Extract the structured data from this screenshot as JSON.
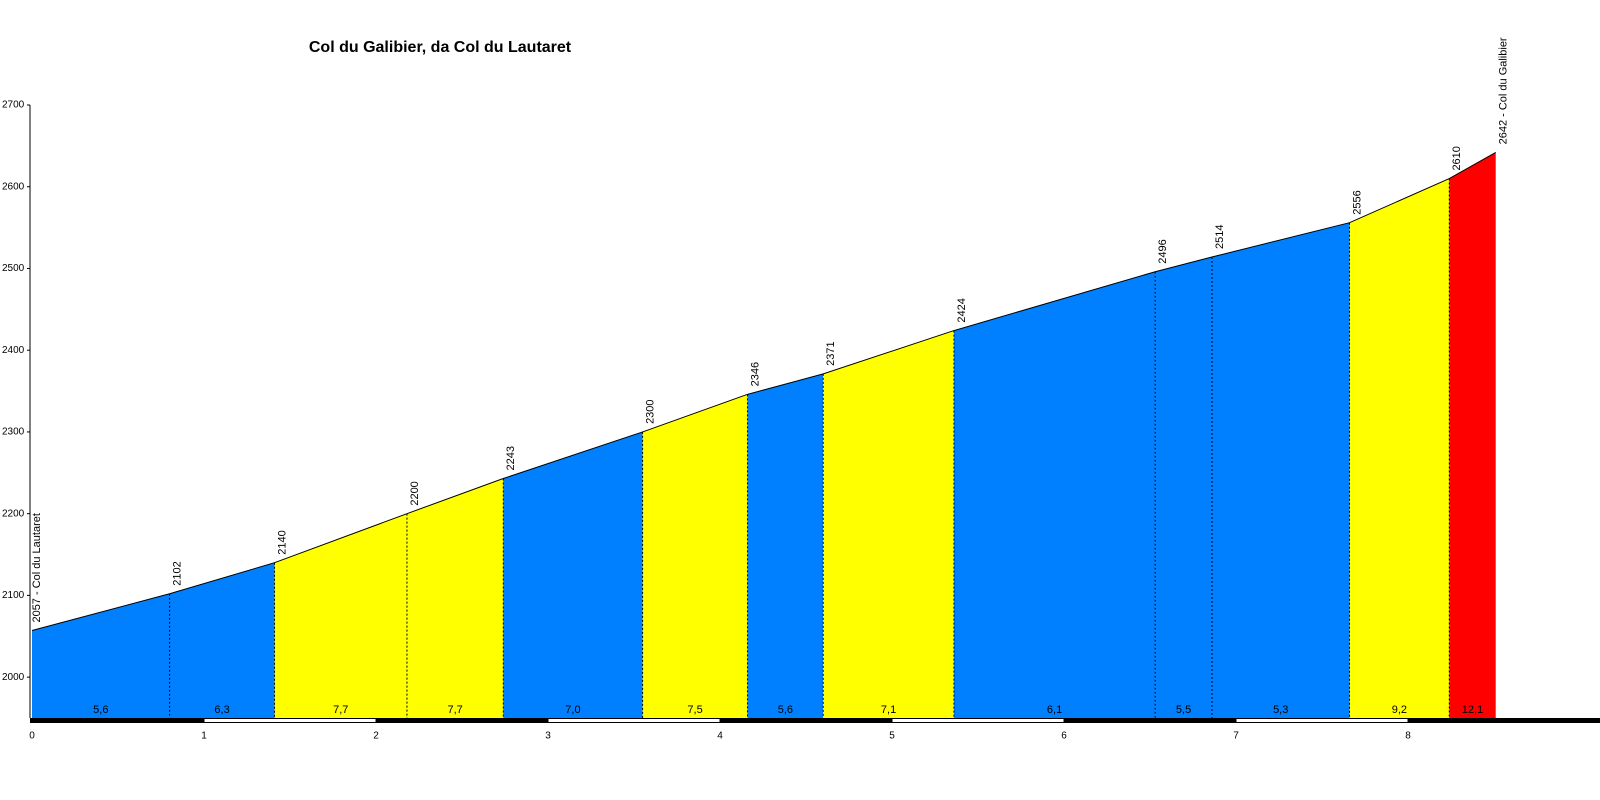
{
  "chart_data": {
    "type": "climb-profile",
    "title": "Col du Galibier, da Col du Lautaret",
    "x": [
      0,
      0.8,
      1.41,
      2.18,
      2.74,
      3.55,
      4.16,
      4.6,
      5.36,
      6.53,
      6.86,
      7.66,
      8.24,
      8.51
    ],
    "values": [
      2057,
      2102,
      2140,
      2200,
      2243,
      2300,
      2346,
      2371,
      2424,
      2496,
      2514,
      2556,
      2610,
      2642
    ],
    "value_labels": [
      "2057 - Col du Lautaret",
      "2102",
      "2140",
      "2200",
      "2243",
      "2300",
      "2346",
      "2371",
      "2424",
      "2496",
      "2514",
      "2556",
      "2610",
      "2642 - Col du Galibier"
    ],
    "gradients": [
      5.6,
      6.3,
      7.7,
      7.7,
      7.0,
      7.5,
      5.6,
      7.1,
      6.1,
      5.5,
      5.3,
      9.2,
      12.1
    ],
    "gradient_labels": [
      "5,6",
      "6,3",
      "7,7",
      "7,7",
      "7,0",
      "7,5",
      "5,6",
      "7,1",
      "6,1",
      "5,5",
      "5,3",
      "9,2",
      "12,1"
    ],
    "segment_colors": [
      "#0080ff",
      "#0080ff",
      "#ffff00",
      "#ffff00",
      "#0080ff",
      "#ffff00",
      "#0080ff",
      "#ffff00",
      "#0080ff",
      "#0080ff",
      "#0080ff",
      "#ffff00",
      "#ff0000"
    ],
    "xlim": [
      0,
      9
    ],
    "xticks": [
      0,
      1,
      2,
      3,
      4,
      5,
      6,
      7,
      8
    ],
    "ylim": [
      1950,
      2700
    ],
    "yticks": [
      2000,
      2100,
      2200,
      2300,
      2400,
      2500,
      2600,
      2700
    ]
  }
}
